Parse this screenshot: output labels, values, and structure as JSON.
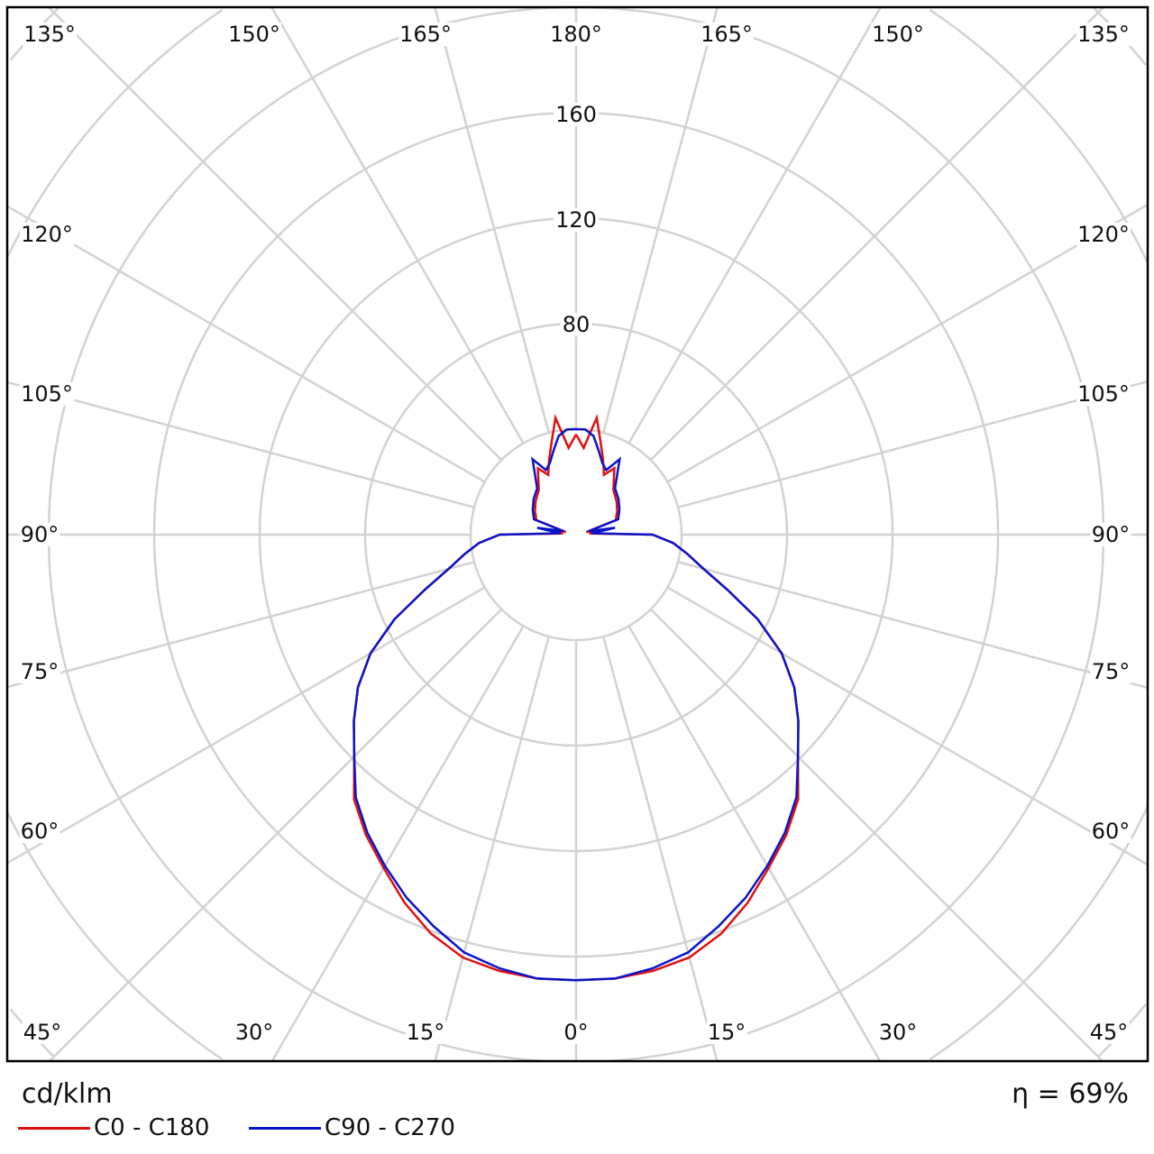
{
  "chart_data": {
    "type": "polar",
    "unit_label": "cd/klm",
    "efficiency_label": "η = 69%",
    "radial_ticks": [
      80,
      120,
      160
    ],
    "ring_step": 40,
    "grid": true,
    "angle_step_deg": 15,
    "angle_labels": {
      "top": [
        "135°",
        "150°",
        "165°",
        "180°",
        "165°",
        "150°",
        "135°"
      ],
      "left": [
        "120°",
        "105°",
        "90°",
        "75°",
        "60°"
      ],
      "right": [
        "120°",
        "105°",
        "90°",
        "75°",
        "60°"
      ],
      "bottom": [
        "45°",
        "30°",
        "15°",
        "0°",
        "15°",
        "30°",
        "45°"
      ]
    },
    "gamma_deg": [
      0,
      5,
      10,
      15,
      20,
      25,
      30,
      35,
      40,
      45,
      50,
      55,
      60,
      65,
      70,
      75,
      80,
      85,
      90,
      95,
      100,
      105,
      110,
      120,
      130,
      140,
      150,
      155,
      160,
      165,
      170,
      175,
      180
    ],
    "series": [
      {
        "name": "C0 - C180",
        "color": "#e01010",
        "values": [
          169,
          169,
          168,
          166,
          161,
          154,
          146,
          139,
          131,
          119,
          110,
          101,
          90,
          76,
          61,
          50,
          43,
          37,
          29,
          5,
          14,
          4,
          16,
          18,
          20,
          22,
          29,
          25,
          30,
          36,
          45,
          33,
          38
        ]
      },
      {
        "name": "C90 - C270",
        "color": "#0a14c8",
        "values": [
          169,
          169,
          167,
          164,
          158,
          152,
          145,
          138,
          130,
          119,
          110,
          101,
          90,
          76,
          61,
          50,
          43,
          37,
          29,
          6,
          15,
          5,
          17,
          19,
          21,
          23,
          33,
          27,
          29,
          33,
          38,
          40,
          40
        ]
      }
    ],
    "legend_position": "bottom-left"
  }
}
